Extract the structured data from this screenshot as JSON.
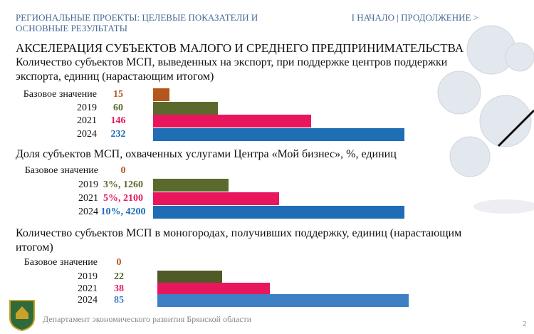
{
  "header": {
    "title": "РЕГИОНАЛЬНЫЕ ПРОЕКТЫ: ЦЕЛЕВЫЕ ПОКАЗАТЕЛИ И ОСНОВНЫЕ РЕЗУЛЬТАТЫ",
    "nav": "I  НАЧАЛО | ПРОДОЛЖЕНИЕ  >",
    "heading": "АКСЕЛЕРАЦИЯ СУБЪЕКТОВ МАЛОГО И СРЕДНЕГО ПРЕДПРИНИМАТЕЛЬСТВА"
  },
  "footer": {
    "text": "Департамент экономического развития Брянской области",
    "page": "2"
  },
  "chart_data": [
    {
      "type": "bar",
      "orientation": "horizontal",
      "title": "Количество субъектов МСП, выведенных на экспорт, при поддержке центров поддержки экспорта, единиц (нарастающим итогом)",
      "categories": [
        "Базовое значение",
        "2019",
        "2021",
        "2024"
      ],
      "values": [
        15,
        60,
        146,
        232
      ],
      "colors": [
        "#b5561c",
        "#5b6a2c",
        "#e8175d",
        "#1f6db4"
      ]
    },
    {
      "type": "bar",
      "orientation": "horizontal",
      "title": "Доля субъектов МСП, охваченных услугами Центра «Мой бизнес», %, единиц",
      "categories": [
        "Базовое значение",
        "2019",
        "2021",
        "2024"
      ],
      "values": [
        0,
        1260,
        2100,
        4200
      ],
      "value_labels": [
        "0",
        "3%, 1260",
        "5%, 2100",
        "10%, 4200"
      ],
      "colors": [
        "#b5561c",
        "#5b6a2c",
        "#e8175d",
        "#1f6db4"
      ]
    },
    {
      "type": "bar",
      "orientation": "horizontal",
      "title": "Количество субъектов МСП в моногородах, получивших поддержку, единиц (нарастающим итогом)",
      "categories": [
        "Базовое значение",
        "2019",
        "2021",
        "2024"
      ],
      "values": [
        0,
        22,
        38,
        85
      ],
      "colors": [
        "#b5561c",
        "#4f5a26",
        "#e8175d",
        "#3f7fc4"
      ]
    }
  ]
}
